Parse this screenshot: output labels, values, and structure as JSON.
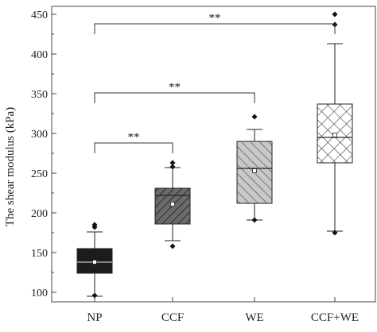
{
  "chart_data": {
    "type": "box",
    "categories": [
      "NP",
      "CCF",
      "WE",
      "CCF+WE"
    ],
    "ylabel": "The shear modulus (kPa)",
    "xlabel": "",
    "ylim": [
      88,
      460
    ],
    "yticks": [
      100,
      150,
      200,
      250,
      300,
      350,
      400,
      450
    ],
    "grid": false,
    "boxes": [
      {
        "category": "NP",
        "fill": "solid-black",
        "q1": 124,
        "median": 138,
        "q3": 155,
        "mean": 138,
        "whisker_low": 95,
        "whisker_high": 176,
        "outliers": [
          96,
          182,
          185
        ]
      },
      {
        "category": "CCF",
        "fill": "diagonal-hatch-gray",
        "q1": 186,
        "median": 222,
        "q3": 231,
        "mean": 211,
        "whisker_low": 165,
        "whisker_high": 257,
        "outliers": [
          158,
          258,
          263
        ]
      },
      {
        "category": "WE",
        "fill": "diagonal-hatch-light-gray",
        "q1": 212,
        "median": 256,
        "q3": 290,
        "mean": 253,
        "whisker_low": 191,
        "whisker_high": 305,
        "outliers": [
          191,
          321
        ]
      },
      {
        "category": "CCF+WE",
        "fill": "crosshatch",
        "q1": 263,
        "median": 295,
        "q3": 337,
        "mean": 298,
        "whisker_low": 177,
        "whisker_high": 413,
        "outliers": [
          175,
          437,
          450
        ]
      }
    ],
    "significance": [
      {
        "from": "NP",
        "to": "CCF",
        "label": "**"
      },
      {
        "from": "NP",
        "to": "WE",
        "label": "**"
      },
      {
        "from": "NP",
        "to": "CCF+WE",
        "label": "**"
      }
    ]
  }
}
